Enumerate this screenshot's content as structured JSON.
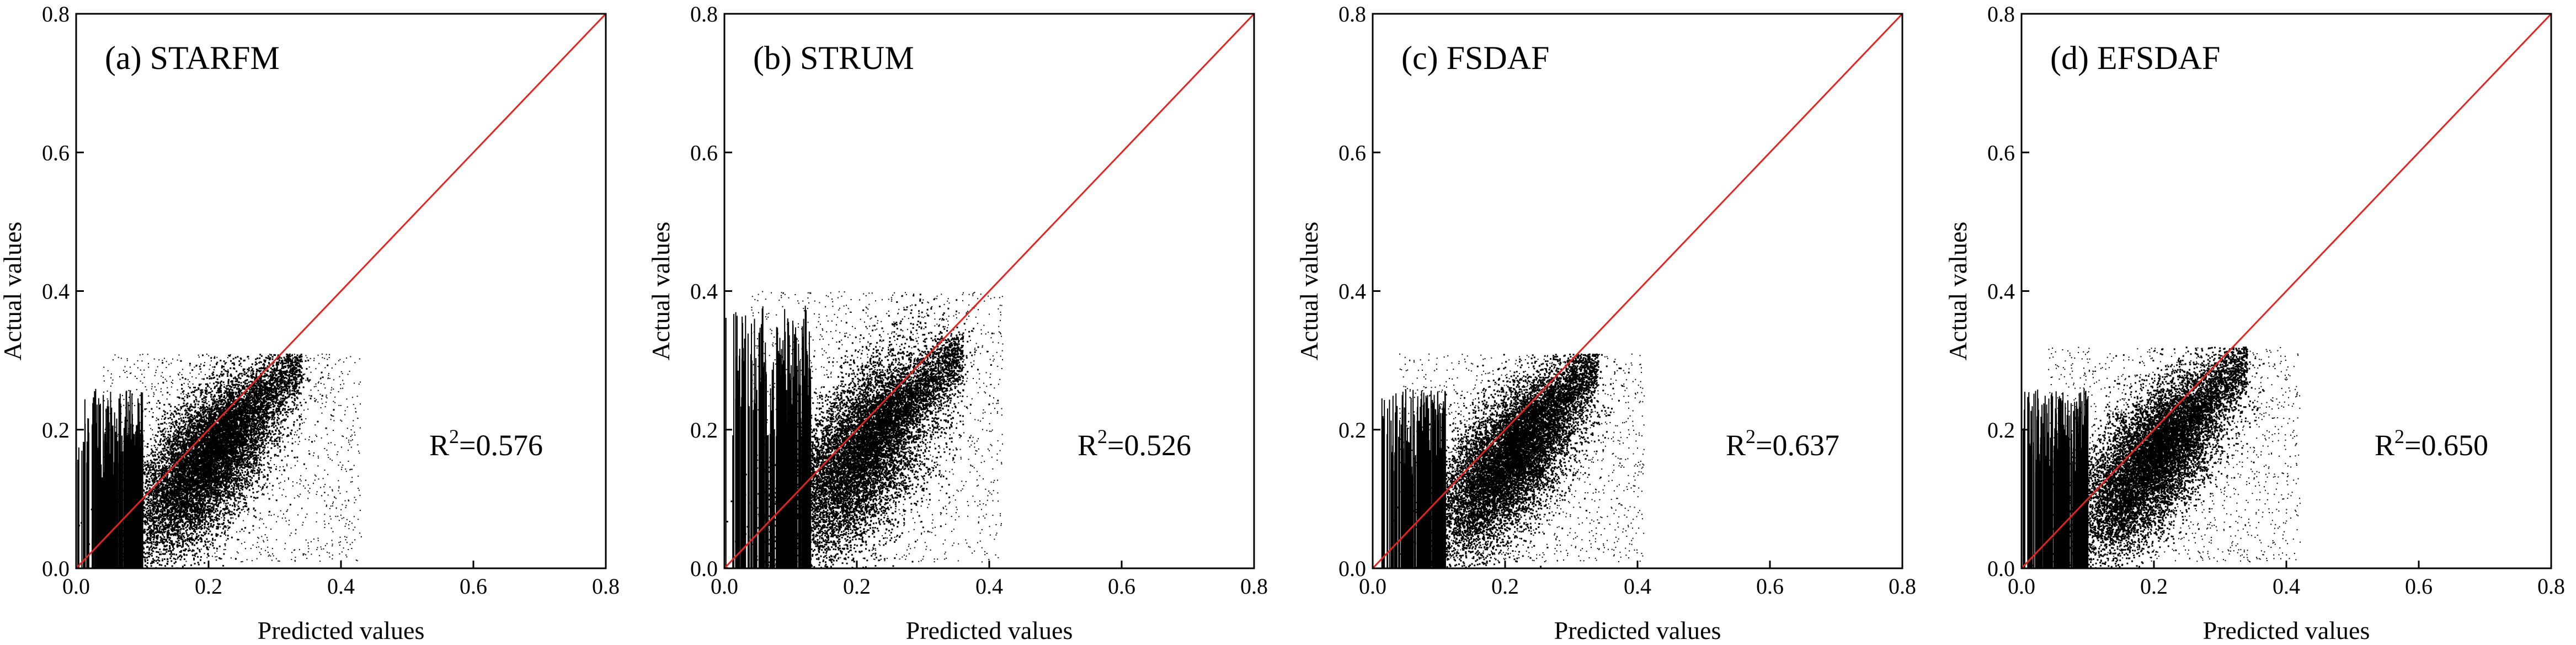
{
  "figure": {
    "accent_color": "#e8231f",
    "point_color": "#000000"
  },
  "chart_data": [
    {
      "type": "scatter",
      "title": "(a) STARFM",
      "xlabel": "Predicted values",
      "ylabel": "Actual values",
      "xlim": [
        0.0,
        0.8
      ],
      "ylim": [
        0.0,
        0.8
      ],
      "xticks": [
        "0.0",
        "0.2",
        "0.4",
        "0.6",
        "0.8"
      ],
      "yticks": [
        "0.0",
        "0.2",
        "0.4",
        "0.6",
        "0.8"
      ],
      "annotation": {
        "base": "R",
        "sup": "2",
        "rest": "=0.576",
        "value": 0.576
      },
      "reference_line": {
        "from": [
          0.0,
          0.0
        ],
        "to": [
          0.8,
          0.8
        ]
      },
      "cloud": {
        "center_x": 0.19,
        "center_y": 0.15,
        "spread_x": 0.055,
        "spread_y": 0.05,
        "max_x": 0.43,
        "max_y": 0.31,
        "upper_tail_x": 0.34,
        "upper_tail_y": 0.31
      },
      "vertical_band": {
        "x_min": 0.0,
        "x_max": 0.1,
        "y_max": 0.26
      }
    },
    {
      "type": "scatter",
      "title": "(b) STRUM",
      "xlabel": "Predicted values",
      "ylabel": "Actual values",
      "xlim": [
        0.0,
        0.8
      ],
      "ylim": [
        0.0,
        0.8
      ],
      "xticks": [
        "0.0",
        "0.2",
        "0.4",
        "0.6",
        "0.8"
      ],
      "yticks": [
        "0.0",
        "0.2",
        "0.4",
        "0.6",
        "0.8"
      ],
      "annotation": {
        "base": "R",
        "sup": "2",
        "rest": "=0.526",
        "value": 0.526
      },
      "reference_line": {
        "from": [
          0.0,
          0.0
        ],
        "to": [
          0.8,
          0.8
        ]
      },
      "cloud": {
        "center_x": 0.2,
        "center_y": 0.16,
        "spread_x": 0.06,
        "spread_y": 0.06,
        "max_x": 0.42,
        "max_y": 0.4,
        "upper_tail_x": 0.36,
        "upper_tail_y": 0.34
      },
      "vertical_band": {
        "x_min": 0.0,
        "x_max": 0.13,
        "y_max": 0.38
      }
    },
    {
      "type": "scatter",
      "title": "(c) FSDAF",
      "xlabel": "Predicted values",
      "ylabel": "Actual values",
      "xlim": [
        0.0,
        0.8
      ],
      "ylim": [
        0.0,
        0.8
      ],
      "xticks": [
        "0.0",
        "0.2",
        "0.4",
        "0.6",
        "0.8"
      ],
      "yticks": [
        "0.0",
        "0.2",
        "0.4",
        "0.6",
        "0.8"
      ],
      "annotation": {
        "base": "R",
        "sup": "2",
        "rest": "=0.637",
        "value": 0.637
      },
      "reference_line": {
        "from": [
          0.0,
          0.0
        ],
        "to": [
          0.8,
          0.8
        ]
      },
      "cloud": {
        "center_x": 0.2,
        "center_y": 0.15,
        "spread_x": 0.055,
        "spread_y": 0.05,
        "max_x": 0.41,
        "max_y": 0.31,
        "upper_tail_x": 0.34,
        "upper_tail_y": 0.31
      },
      "vertical_band": {
        "x_min": 0.0,
        "x_max": 0.11,
        "y_max": 0.26
      }
    },
    {
      "type": "scatter",
      "title": "(d) EFSDAF",
      "xlabel": "Predicted values",
      "ylabel": "Actual values",
      "xlim": [
        0.0,
        0.8
      ],
      "ylim": [
        0.0,
        0.8
      ],
      "xticks": [
        "0.0",
        "0.2",
        "0.4",
        "0.6",
        "0.8"
      ],
      "yticks": [
        "0.0",
        "0.2",
        "0.4",
        "0.6",
        "0.8"
      ],
      "annotation": {
        "base": "R",
        "sup": "2",
        "rest": "=0.650",
        "value": 0.65
      },
      "reference_line": {
        "from": [
          0.0,
          0.0
        ],
        "to": [
          0.8,
          0.8
        ]
      },
      "cloud": {
        "center_x": 0.19,
        "center_y": 0.15,
        "spread_x": 0.055,
        "spread_y": 0.05,
        "max_x": 0.42,
        "max_y": 0.32,
        "upper_tail_x": 0.34,
        "upper_tail_y": 0.32
      },
      "vertical_band": {
        "x_min": 0.0,
        "x_max": 0.1,
        "y_max": 0.26
      }
    }
  ]
}
